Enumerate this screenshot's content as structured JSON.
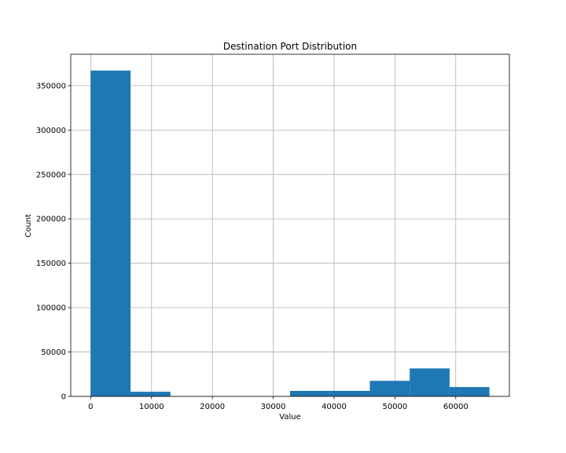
{
  "chart_data": {
    "type": "bar",
    "subtype": "histogram",
    "title": "Destination Port Distribution",
    "xlabel": "Value",
    "ylabel": "Count",
    "bin_edges": [
      0,
      6553.5,
      13107,
      19660.5,
      26214,
      32767.5,
      39321,
      45874.5,
      52428,
      58981.5,
      65535
    ],
    "values": [
      367000,
      5200,
      200,
      100,
      100,
      6200,
      6200,
      17500,
      31500,
      10500
    ],
    "xlim": [
      -3276.75,
      68811.75
    ],
    "ylim": [
      0,
      385350
    ],
    "xticks": [
      0,
      10000,
      20000,
      30000,
      40000,
      50000,
      60000
    ],
    "xtick_labels": [
      "0",
      "10000",
      "20000",
      "30000",
      "40000",
      "50000",
      "60000"
    ],
    "yticks": [
      0,
      50000,
      100000,
      150000,
      200000,
      250000,
      300000,
      350000
    ],
    "ytick_labels": [
      "0",
      "50000",
      "100000",
      "150000",
      "200000",
      "250000",
      "300000",
      "350000"
    ],
    "grid": true,
    "bar_color": "#1f77b4",
    "grid_color": "#b0b0b0"
  }
}
